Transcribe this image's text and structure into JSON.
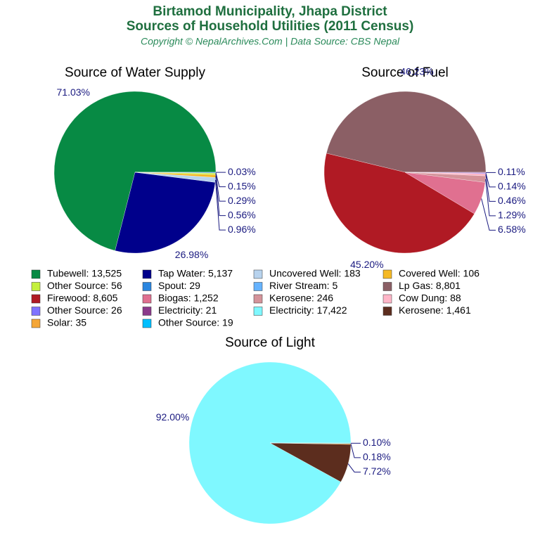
{
  "header": {
    "title_line1": "Birtamod Municipality, Jhapa District",
    "title_line2": "Sources of Household Utilities (2011 Census)",
    "subtitle": "Copyright © NepalArchives.Com | Data Source: CBS Nepal"
  },
  "chart_data": [
    {
      "type": "pie",
      "title": "Source of Water Supply",
      "legend_labels": [
        "Tubewell: 13,525",
        "Tap Water: 5,137",
        "Uncovered Well: 183",
        "Covered Well: 106",
        "Other Source: 56",
        "Spout: 29",
        "River Stream: 5"
      ],
      "values": [
        71.03,
        26.98,
        0.96,
        0.56,
        0.29,
        0.15,
        0.03
      ],
      "value_labels": [
        "71.03%",
        "26.98%",
        "0.96%",
        "0.56%",
        "0.29%",
        "0.15%",
        "0.03%"
      ],
      "colors": [
        "#078a44",
        "#00008b",
        "#b8d3ee",
        "#f5b925",
        "#c4f03c",
        "#2a86e0",
        "#66b3ff"
      ]
    },
    {
      "type": "pie",
      "title": "Source of Fuel",
      "legend_labels": [
        "Lp Gas: 8,801",
        "Firewood: 8,605",
        "Biogas: 1,252",
        "Kerosene: 246",
        "Cow Dung: 88",
        "Other Source: 26",
        "Electricity: 21"
      ],
      "values": [
        46.23,
        45.2,
        6.58,
        1.29,
        0.46,
        0.14,
        0.11
      ],
      "value_labels": [
        "46.23%",
        "45.20%",
        "6.58%",
        "1.29%",
        "0.46%",
        "0.14%",
        "0.11%"
      ],
      "colors": [
        "#8b5f65",
        "#b01a24",
        "#e07090",
        "#d4939a",
        "#ffb6c8",
        "#7f73ff",
        "#8b3a8b"
      ]
    },
    {
      "type": "pie",
      "title": "Source of Light",
      "legend_labels": [
        "Electricity: 17,422",
        "Kerosene: 1,461",
        "Solar: 35",
        "Other Source: 19"
      ],
      "values": [
        92.0,
        7.72,
        0.18,
        0.1
      ],
      "value_labels": [
        "92.00%",
        "7.72%",
        "0.18%",
        "0.10%"
      ],
      "colors": [
        "#7ff8ff",
        "#5c2d1e",
        "#f4a636",
        "#00bfff"
      ]
    }
  ]
}
